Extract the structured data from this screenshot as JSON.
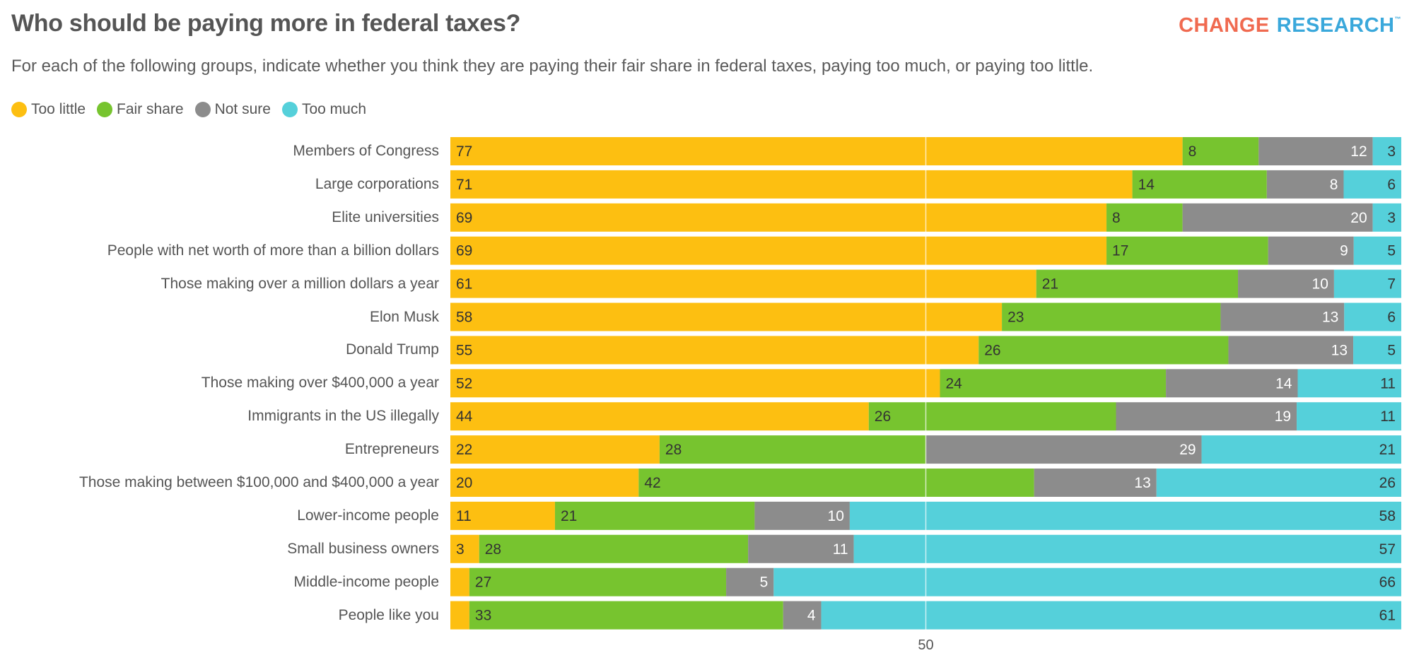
{
  "header": {
    "title": "Who should be paying more in federal taxes?",
    "subtitle": "For each of the following groups, indicate whether you think they are paying their fair share in federal taxes, paying too much, or paying too little.",
    "logo_part1": "CHANGE",
    "logo_part2": "RESEARCH",
    "logo_tm": "™"
  },
  "colors": {
    "too_little": "#FDBF11",
    "fair_share": "#77C42F",
    "not_sure": "#8C8C8C",
    "too_much": "#55D0DA",
    "label_dark": "#333333",
    "label_light": "#ffffff",
    "gridline": "#ffffff"
  },
  "chart_data": {
    "type": "bar",
    "orientation": "horizontal",
    "stacked": true,
    "title": "Who should be paying more in federal taxes?",
    "subtitle": "For each of the following groups, indicate whether you think they are paying their fair share in federal taxes, paying too much, or paying too little.",
    "xlabel": "",
    "ylabel": "",
    "xlim": [
      0,
      100
    ],
    "x_ticks": [
      50
    ],
    "grid": "vertical line at 50",
    "legend_position": "top-left",
    "categories": [
      "Members of Congress",
      "Large corporations",
      "Elite universities",
      "People with net worth of more than a billion dollars",
      "Those making over a million dollars a year",
      "Elon Musk",
      "Donald Trump",
      "Those making over $400,000 a year",
      "Immigrants in the US illegally",
      "Entrepreneurs",
      "Those making between $100,000 and $400,000 a year",
      "Lower-income people",
      "Small business owners",
      "Middle-income people",
      "People like you"
    ],
    "series": [
      {
        "name": "Too little",
        "key": "too_little",
        "values": [
          77,
          71,
          69,
          69,
          61,
          58,
          55,
          52,
          44,
          22,
          20,
          11,
          3,
          2,
          2
        ],
        "labeled": [
          true,
          true,
          true,
          true,
          true,
          true,
          true,
          true,
          true,
          true,
          true,
          true,
          true,
          false,
          false
        ]
      },
      {
        "name": "Fair share",
        "key": "fair_share",
        "values": [
          8,
          14,
          8,
          17,
          21,
          23,
          26,
          24,
          26,
          28,
          42,
          21,
          28,
          27,
          33
        ],
        "labeled": [
          true,
          true,
          true,
          true,
          true,
          true,
          true,
          true,
          true,
          true,
          true,
          true,
          true,
          true,
          true
        ]
      },
      {
        "name": "Not sure",
        "key": "not_sure",
        "values": [
          12,
          8,
          20,
          9,
          10,
          13,
          13,
          14,
          19,
          29,
          13,
          10,
          11,
          5,
          4
        ],
        "labeled": [
          true,
          true,
          true,
          true,
          true,
          true,
          true,
          true,
          true,
          true,
          true,
          true,
          true,
          true,
          true
        ]
      },
      {
        "name": "Too much",
        "key": "too_much",
        "values": [
          3,
          6,
          3,
          5,
          7,
          6,
          5,
          11,
          11,
          21,
          26,
          58,
          57,
          66,
          61
        ],
        "labeled": [
          true,
          true,
          true,
          true,
          true,
          true,
          true,
          true,
          true,
          true,
          true,
          true,
          true,
          true,
          true
        ]
      }
    ]
  },
  "legend": [
    {
      "label": "Too little",
      "key": "too_little"
    },
    {
      "label": "Fair share",
      "key": "fair_share"
    },
    {
      "label": "Not sure",
      "key": "not_sure"
    },
    {
      "label": "Too much",
      "key": "too_much"
    }
  ],
  "axis": {
    "tick_label": "50"
  }
}
